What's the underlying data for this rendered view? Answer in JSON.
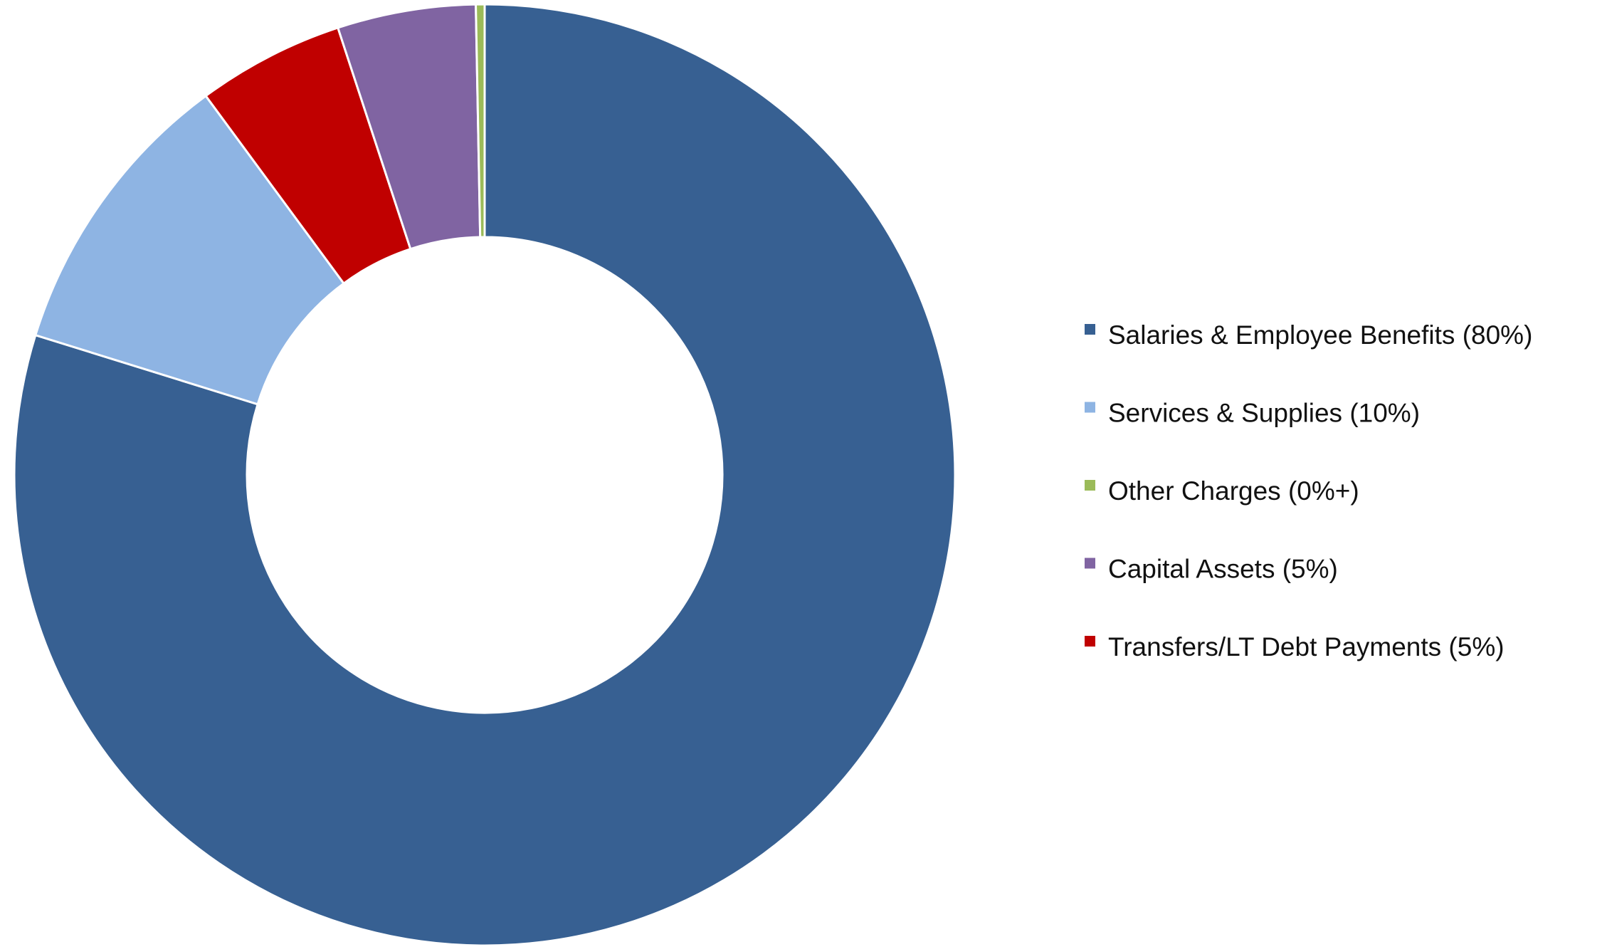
{
  "chart_data": {
    "type": "donut",
    "categories": [
      "Salaries & Employee Benefits (80%)",
      "Services & Supplies (10%)",
      "Transfers/LT Debt Payments (5%)",
      "Capital Assets (5%)",
      "Other Charges (0%+)"
    ],
    "values": [
      79.8,
      10.1,
      5.05,
      4.75,
      0.3
    ],
    "colors": [
      "#376092",
      "#8eb4e3",
      "#c00000",
      "#8064a2",
      "#9bbb59"
    ],
    "legend": "right"
  }
}
